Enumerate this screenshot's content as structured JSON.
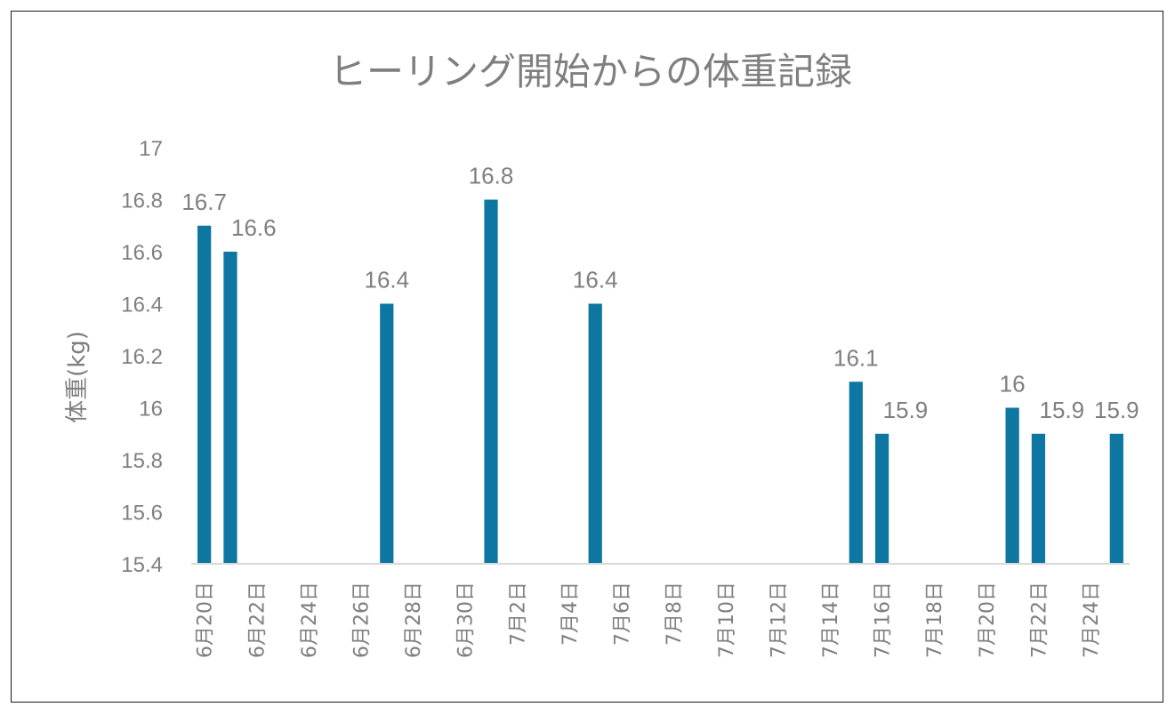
{
  "chart_data": {
    "type": "bar",
    "title": "ヒーリング開始からの体重記録",
    "xlabel": "",
    "ylabel": "体重(kg)",
    "ylim": [
      15.4,
      17
    ],
    "yticks": [
      "15.4",
      "15.6",
      "15.8",
      "16",
      "16.2",
      "16.4",
      "16.6",
      "16.8",
      "17"
    ],
    "x_tick_labels": [
      "6月20日",
      "6月22日",
      "6月24日",
      "6月26日",
      "6月28日",
      "6月30日",
      "7月2日",
      "7月4日",
      "7月6日",
      "7月8日",
      "7月10日",
      "7月12日",
      "7月14日",
      "7月16日",
      "7月18日",
      "7月20日",
      "7月22日",
      "7月24日"
    ],
    "x_range": [
      "6月20日",
      "7月24日"
    ],
    "grid": false,
    "legend": "none",
    "series": [
      {
        "x": [
          "6月20日",
          "6月21日",
          "6月27日",
          "7月1日",
          "7月5日",
          "7月15日",
          "7月16日",
          "7月21日",
          "7月22日",
          "7月25日"
        ],
        "values": [
          16.7,
          16.6,
          16.4,
          16.8,
          16.4,
          16.1,
          15.9,
          16,
          15.9,
          15.9
        ],
        "data_labels": [
          "16.7",
          "16.6",
          "16.4",
          "16.8",
          "16.4",
          "16.1",
          "15.9",
          "16",
          "15.9",
          "15.9"
        ]
      }
    ],
    "colors": {
      "bar": "#0e77a1",
      "text": "#7f7f7f",
      "axis": "#d9d9d9"
    }
  }
}
